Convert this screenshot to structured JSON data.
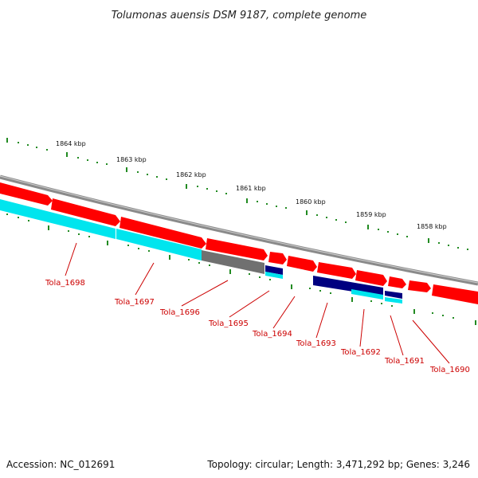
{
  "title": "Tolumonas auensis DSM 9187, complete genome",
  "footer": {
    "accession": "Accession: NC_012691",
    "summary": "Topology: circular; Length: 3,471,292 bp; Genes: 3,246"
  },
  "ruler": {
    "ticks": [
      "1864 kbp",
      "1863 kbp",
      "1862 kbp",
      "1861 kbp",
      "1860 kbp",
      "1859 kbp",
      "1858 kbp"
    ]
  },
  "genes": [
    {
      "name": "Tola_1698"
    },
    {
      "name": "Tola_1697"
    },
    {
      "name": "Tola_1696"
    },
    {
      "name": "Tola_1695"
    },
    {
      "name": "Tola_1694"
    },
    {
      "name": "Tola_1693"
    },
    {
      "name": "Tola_1692"
    },
    {
      "name": "Tola_1691"
    },
    {
      "name": "Tola_1690"
    }
  ],
  "colors": {
    "cds": "#ff0000",
    "cds_light": "#ff5a5a",
    "rna": "#00e5ee",
    "pseudo": "#707070",
    "other": "#000080",
    "backbone": "#8a8a8a",
    "ticks": "#228b22",
    "label": "#cc0000"
  }
}
